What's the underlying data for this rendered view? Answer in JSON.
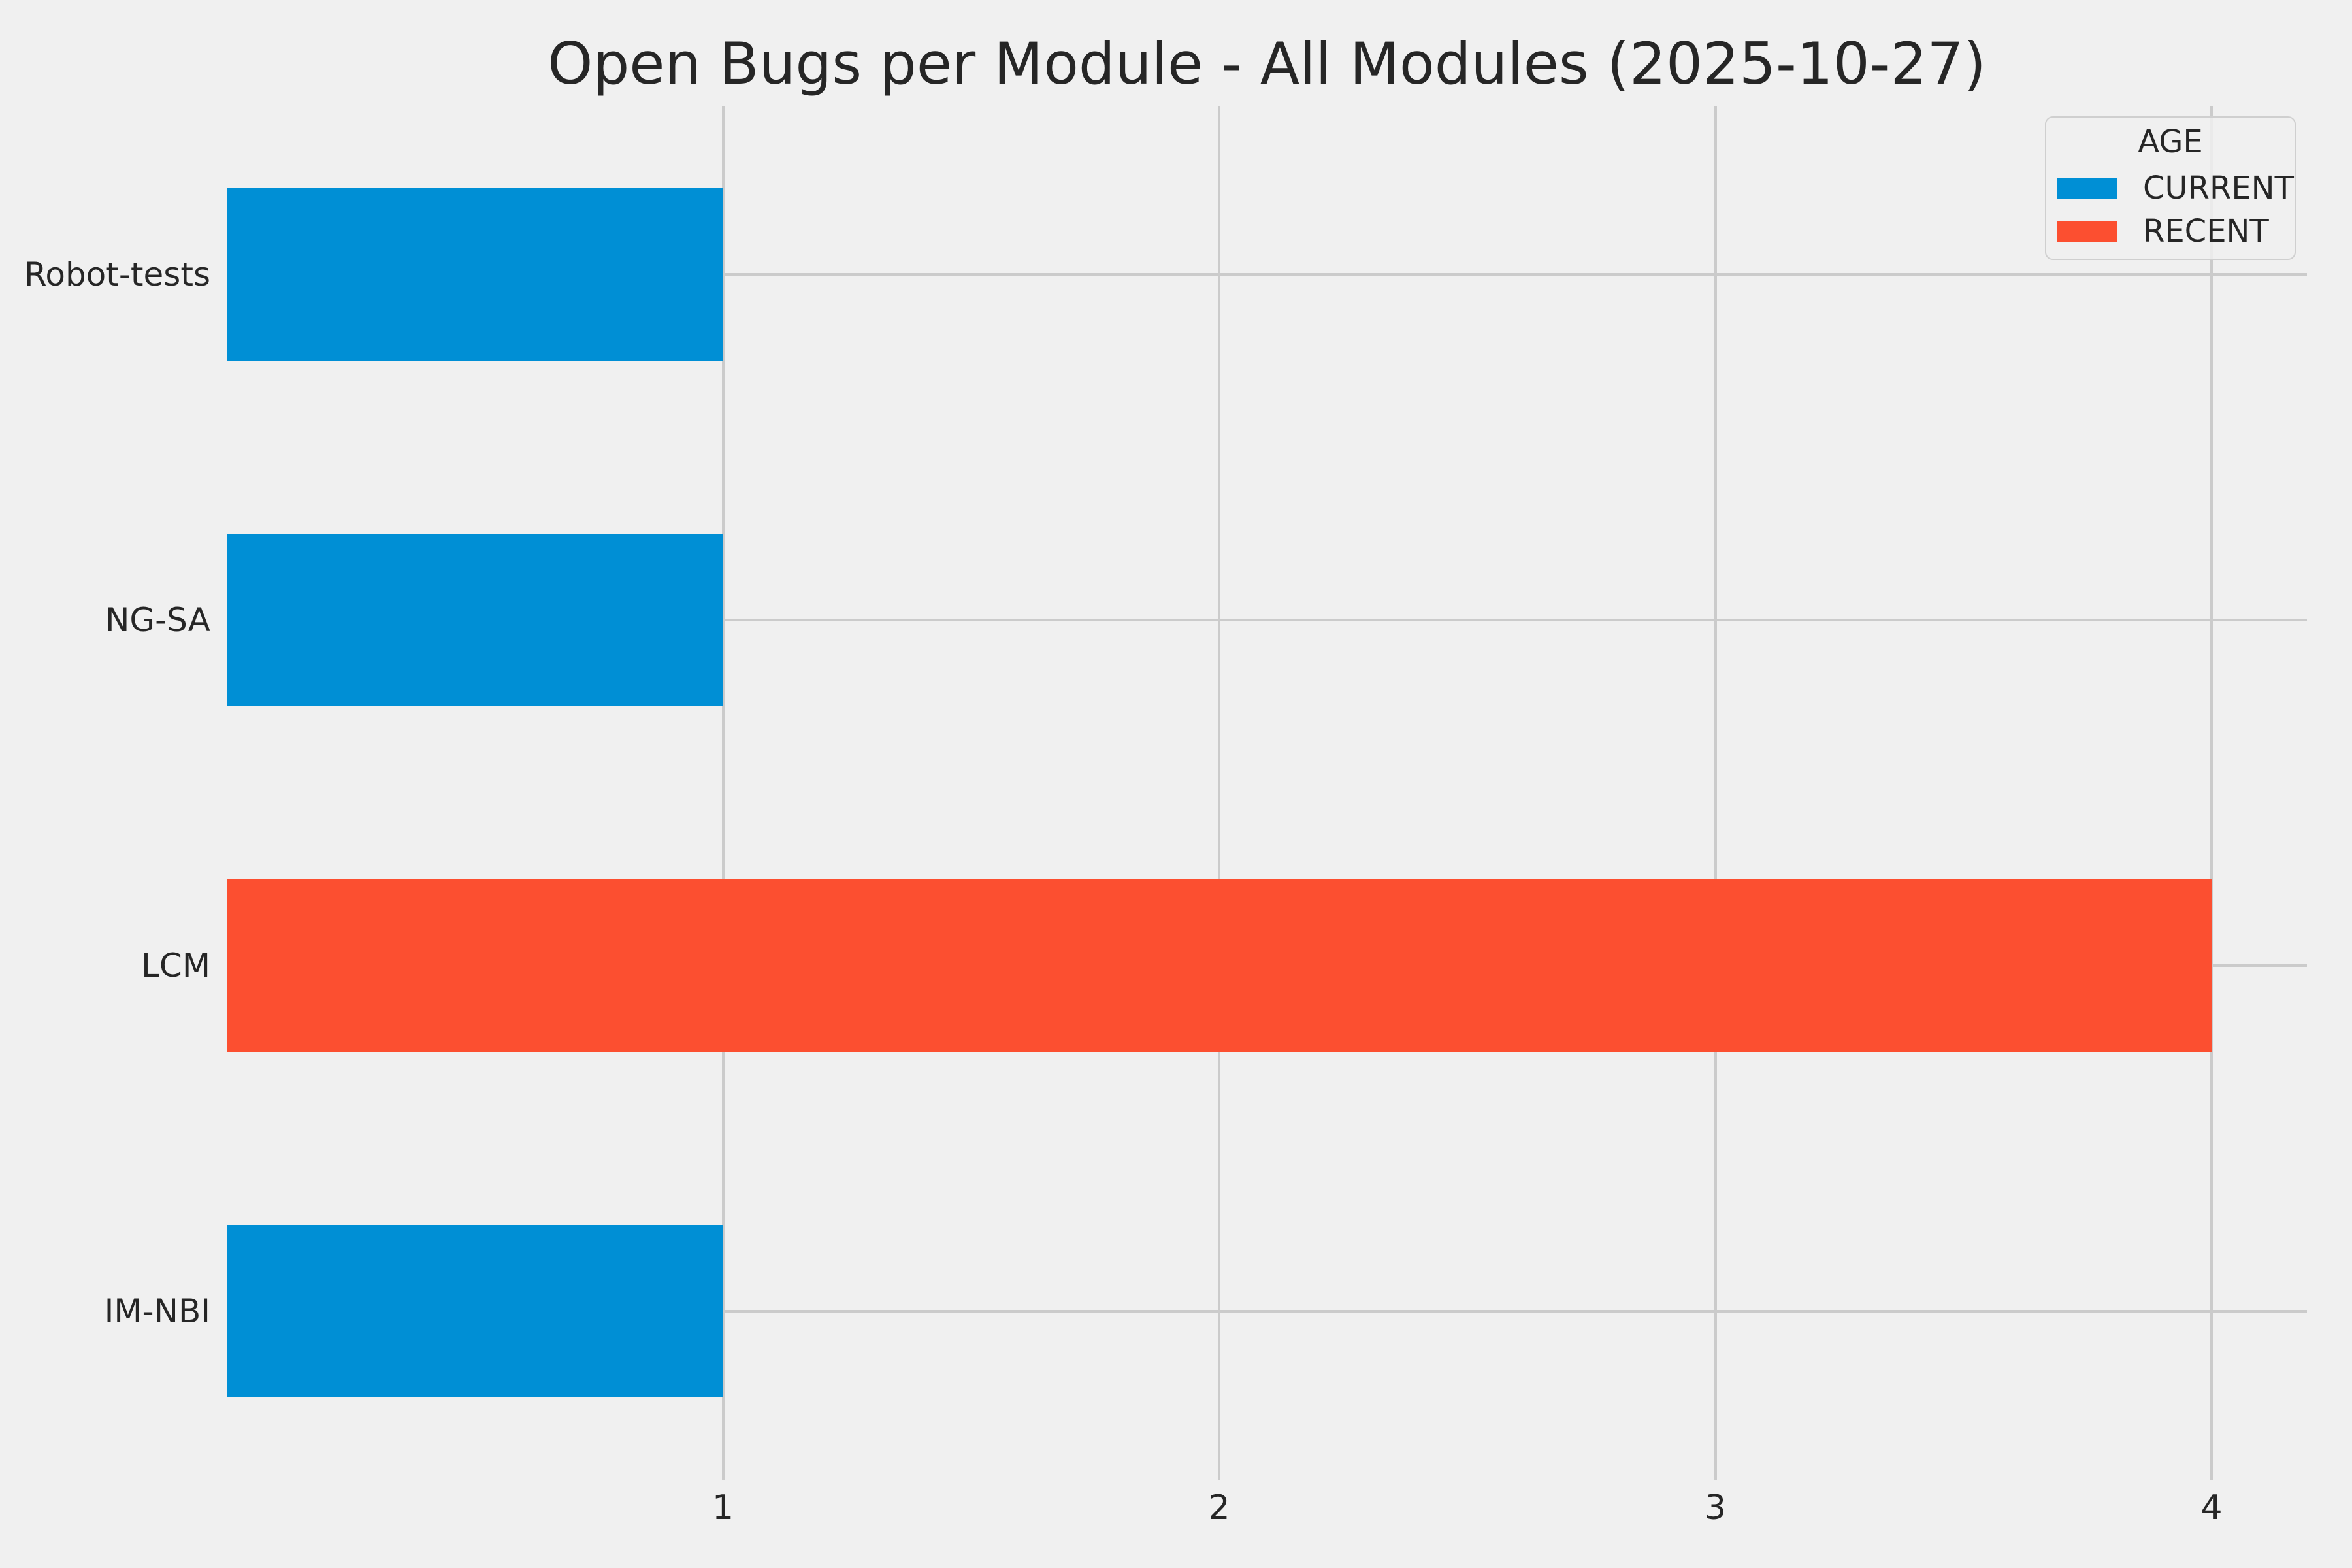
{
  "title": "Open Bugs per Module - All Modules (2025-10-27)",
  "colors": {
    "background": "#F0F0F0",
    "grid": "#CBCBCB",
    "text": "#262626",
    "current": "#008FD5",
    "recent": "#FC4F30",
    "legend_border": "#CFCFCF"
  },
  "legend": {
    "title": "AGE",
    "items": [
      {
        "label": "CURRENT",
        "color": "#008FD5",
        "key": "current"
      },
      {
        "label": "RECENT",
        "color": "#FC4F30",
        "key": "recent"
      }
    ]
  },
  "chart_data": {
    "type": "bar",
    "orientation": "horizontal",
    "title": "Open Bugs per Module - All Modules (2025-10-27)",
    "categories": [
      "Robot-tests",
      "NG-SA",
      "LCM",
      "IM-NBI"
    ],
    "values": [
      1,
      1,
      4,
      1
    ],
    "bar_series": [
      "CURRENT",
      "CURRENT",
      "RECENT",
      "CURRENT"
    ],
    "series_colors": {
      "CURRENT": "#008FD5",
      "RECENT": "#FC4F30"
    },
    "series_field": "AGE",
    "xlabel": "",
    "ylabel": "",
    "xlim": [
      0,
      4.19
    ],
    "x_ticks": [
      {
        "value": 1,
        "label": "1"
      },
      {
        "value": 2,
        "label": "2"
      },
      {
        "value": 3,
        "label": "3"
      },
      {
        "value": 4,
        "label": "4"
      }
    ],
    "grid": true,
    "legend_position": "upper right",
    "legend_title": "AGE"
  }
}
